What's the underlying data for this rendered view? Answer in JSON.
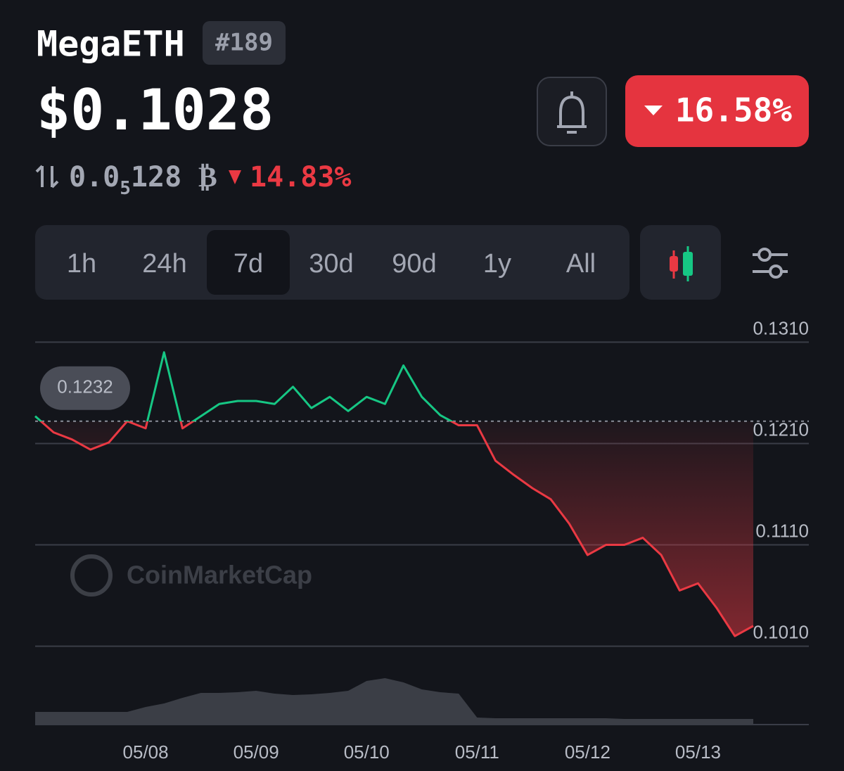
{
  "header": {
    "name": "MegaETH",
    "rank": "#189",
    "price": "$0.1028",
    "change_24h": "16.58%",
    "btc_price": {
      "lead": "0.0",
      "subscript": "5",
      "rest": "128"
    },
    "btc_symbol": "₿",
    "btc_change": "14.83%"
  },
  "tabs": [
    "1h",
    "24h",
    "7d",
    "30d",
    "90d",
    "1y",
    "All"
  ],
  "active_tab": 2,
  "watermark": "CoinMarketCap",
  "chart_data": {
    "type": "line",
    "categories": [
      null,
      null,
      null,
      null,
      null,
      null,
      "05/08",
      null,
      null,
      null,
      null,
      null,
      "05/09",
      null,
      null,
      null,
      null,
      null,
      "05/10",
      null,
      null,
      null,
      null,
      null,
      "05/11",
      null,
      null,
      null,
      null,
      null,
      "05/12",
      null,
      null,
      null,
      null,
      null,
      "05/13",
      null,
      null,
      null
    ],
    "values": [
      0.1237,
      0.1221,
      0.1214,
      0.1204,
      0.1211,
      0.1232,
      0.1225,
      0.13,
      0.1225,
      0.1237,
      0.1249,
      0.1252,
      0.1252,
      0.1249,
      0.1266,
      0.1245,
      0.1256,
      0.1242,
      0.1256,
      0.1249,
      0.1287,
      0.1256,
      0.1238,
      0.1228,
      0.1228,
      0.1193,
      0.1179,
      0.1166,
      0.1155,
      0.1131,
      0.11,
      0.111,
      0.111,
      0.1117,
      0.11,
      0.1065,
      0.1072,
      0.1048,
      0.102,
      0.103
    ],
    "volume": [
      18,
      18,
      18,
      18,
      18,
      18,
      25,
      30,
      38,
      45,
      45,
      46,
      48,
      44,
      42,
      43,
      45,
      48,
      62,
      66,
      60,
      50,
      46,
      44,
      10,
      9,
      9,
      9,
      9,
      9,
      9,
      9,
      8,
      8,
      8,
      8,
      8,
      8,
      8,
      8
    ],
    "reference_value": 0.1232,
    "up_color": "#16c784",
    "down_color": "#ea3943",
    "volume_color": "#3b3e46",
    "ylim": [
      0.1,
      0.132
    ],
    "yticks": [
      {
        "value": 0.131,
        "label": "0.1310"
      },
      {
        "value": 0.121,
        "label": "0.1210"
      },
      {
        "value": 0.111,
        "label": "0.1110"
      },
      {
        "value": 0.101,
        "label": "0.1010"
      }
    ],
    "grid": true
  }
}
